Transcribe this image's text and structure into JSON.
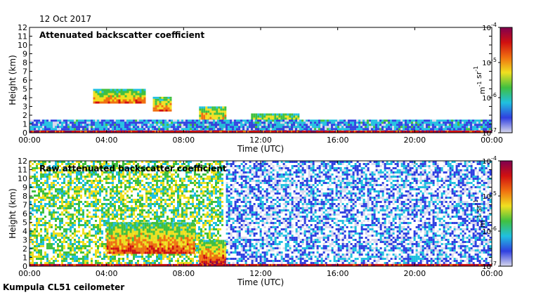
{
  "date": "12 Oct 2017",
  "footer": "Kumpula CL51 ceilometer",
  "chart_data": [
    {
      "type": "heatmap",
      "title": "Attenuated backscatter coefficient",
      "xlabel": "Time (UTC)",
      "ylabel": "Height (km)",
      "x_ticks": [
        "00:00",
        "04:00",
        "08:00",
        "12:00",
        "16:00",
        "20:00",
        "00:00"
      ],
      "y_ticks": [
        "0",
        "1",
        "2",
        "3",
        "4",
        "5",
        "6",
        "7",
        "8",
        "9",
        "10",
        "11",
        "12"
      ],
      "xlim_hours": [
        0,
        24
      ],
      "ylim_km": [
        0,
        12
      ],
      "colorbar": {
        "scale": "log",
        "ticks": [
          "10-7",
          "10-6",
          "10-5",
          "10-4"
        ],
        "unit": "m-1 sr-1",
        "colormap": [
          "#d8d8ec",
          "#3040e0",
          "#20c0e0",
          "#40c040",
          "#f0e020",
          "#f07010",
          "#d01010",
          "#800050"
        ]
      },
      "features": [
        {
          "name": "cloud",
          "t_start": 3.3,
          "t_end": 6.0,
          "h_bottom": 3.5,
          "h_top": 5.0,
          "level": 0.65
        },
        {
          "name": "cloud",
          "t_start": 6.4,
          "t_end": 7.3,
          "h_bottom": 2.5,
          "h_top": 4.1,
          "level": 0.7
        },
        {
          "name": "cloud",
          "t_start": 8.8,
          "t_end": 10.2,
          "h_bottom": 0.3,
          "h_top": 3.0,
          "level": 0.75
        },
        {
          "name": "cloud",
          "t_start": 11.5,
          "t_end": 14.0,
          "h_bottom": 0.3,
          "h_top": 2.2,
          "level": 0.7
        },
        {
          "name": "boundary-layer",
          "t_start": 0.0,
          "t_end": 24.0,
          "h_bottom": 0.0,
          "h_top": 1.5,
          "level": 0.2
        }
      ]
    },
    {
      "type": "heatmap",
      "title": "Raw attenuated backscatter coefficient",
      "xlabel": "Time (UTC)",
      "ylabel": "Height (km)",
      "x_ticks": [
        "00:00",
        "04:00",
        "08:00",
        "12:00",
        "16:00",
        "20:00",
        "00:00"
      ],
      "y_ticks": [
        "0",
        "1",
        "2",
        "3",
        "4",
        "5",
        "6",
        "7",
        "8",
        "9",
        "10",
        "11",
        "12"
      ],
      "xlim_hours": [
        0,
        24
      ],
      "ylim_km": [
        0,
        12
      ],
      "colorbar": {
        "scale": "log",
        "ticks": [
          "10-7",
          "10-6",
          "10-5",
          "10-4"
        ],
        "unit": "m-1 sr-1",
        "colormap": [
          "#d8d8ec",
          "#3040e0",
          "#20c0e0",
          "#40c040",
          "#f0e020",
          "#f07010",
          "#d01010",
          "#800050"
        ]
      },
      "features": [
        {
          "name": "noise-background",
          "t_start": 0.0,
          "t_end": 10.0,
          "h_bottom": 0.0,
          "h_top": 12.0,
          "level": 0.45
        },
        {
          "name": "cloud",
          "t_start": 4.0,
          "t_end": 8.5,
          "h_bottom": 1.5,
          "h_top": 5.0,
          "level": 0.7
        },
        {
          "name": "cloud",
          "t_start": 8.8,
          "t_end": 10.2,
          "h_bottom": 0.3,
          "h_top": 3.0,
          "level": 0.75
        },
        {
          "name": "noise-background",
          "t_start": 10.2,
          "t_end": 24.0,
          "h_bottom": 0.0,
          "h_top": 12.0,
          "level": 0.15
        }
      ]
    }
  ]
}
